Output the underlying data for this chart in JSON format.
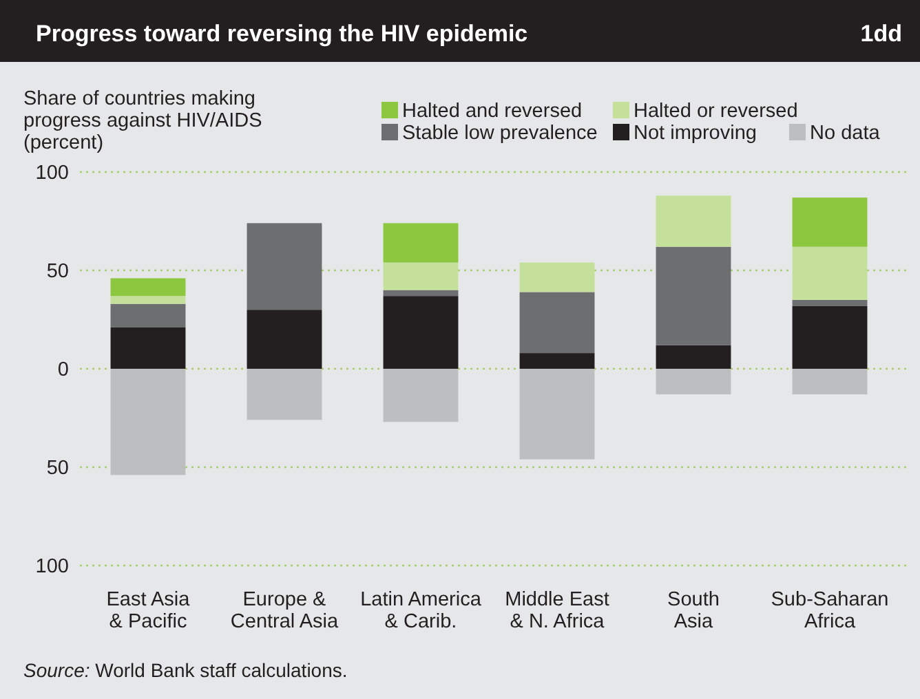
{
  "chart_data": {
    "type": "bar",
    "stacked": true,
    "title": "Progress toward reversing the HIV epidemic",
    "subtitle": "1dd",
    "ylabel": "Share of countries making\nprogress against HIV/AIDS\n(percent)",
    "categories": [
      "East Asia\n& Pacific",
      "Europe &\nCentral Asia",
      "Latin America\n& Carib.",
      "Middle East\n& N. Africa",
      "South\nAsia",
      "Sub-Saharan\nAfrica"
    ],
    "series": [
      {
        "name": "No data",
        "color": "#bcbec0",
        "values": [
          -54,
          -26,
          -27,
          -46,
          -13,
          -13
        ]
      },
      {
        "name": "Not improving",
        "color": "#231f20",
        "values": [
          21,
          30,
          37,
          8,
          12,
          32
        ]
      },
      {
        "name": "Stable low prevalence",
        "color": "#6d6e70",
        "values": [
          12,
          44,
          3,
          31,
          50,
          3
        ]
      },
      {
        "name": "Halted or reversed",
        "color": "#c5e09b",
        "values": [
          4,
          0,
          14,
          15,
          26,
          27
        ]
      },
      {
        "name": "Halted and reversed",
        "color": "#8dc63f",
        "values": [
          9,
          0,
          20,
          0,
          0,
          25
        ]
      }
    ],
    "ylim": [
      -100,
      100
    ],
    "yticks": [
      {
        "value": -100,
        "label": "100"
      },
      {
        "value": -50,
        "label": "50"
      },
      0,
      50,
      100
    ],
    "grid": "y",
    "legend": "top right",
    "annotations": [
      "Source: World Bank staff calculations."
    ]
  }
}
